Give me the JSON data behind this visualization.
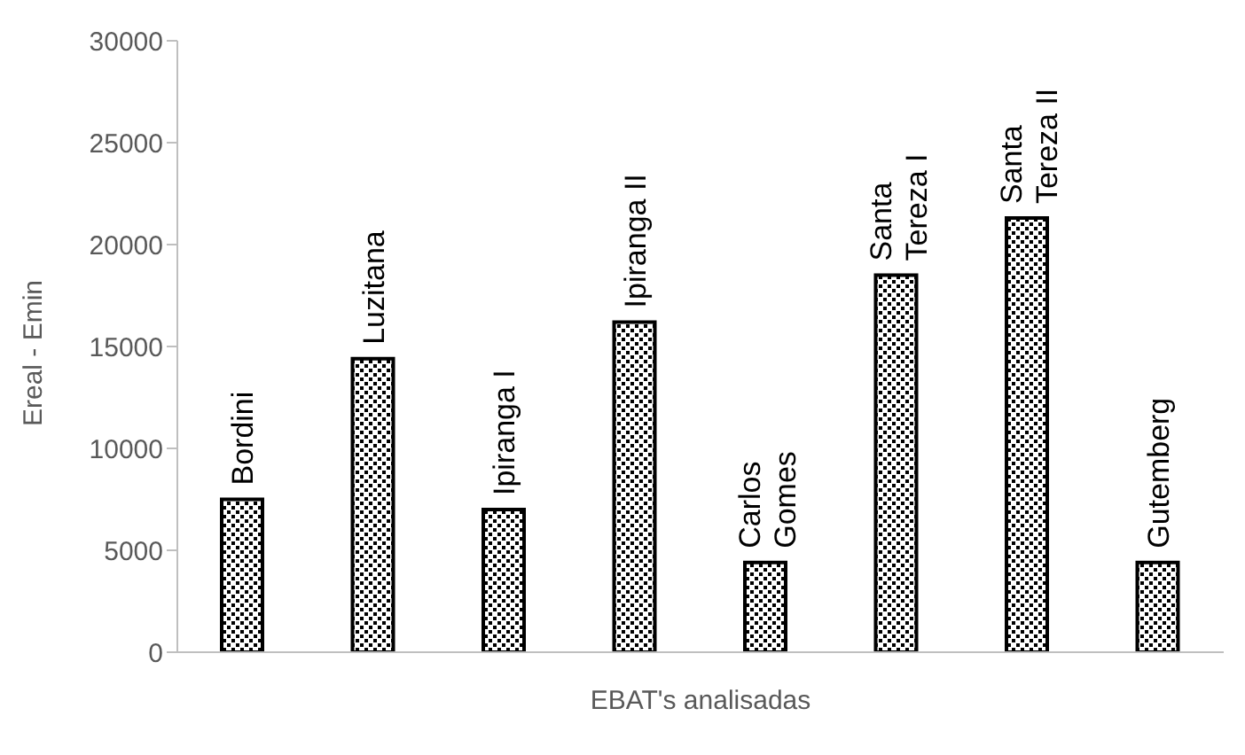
{
  "chart_data": {
    "type": "bar",
    "xlabel": "EBAT's analisadas",
    "ylabel": "Ereal - Emin",
    "categories": [
      "Bordini",
      "Luzitana",
      "Ipiranga I",
      "Ipiranga II",
      "Carlos Gomes",
      "Santa Tereza I",
      "Santa Tereza II",
      "Gutemberg"
    ],
    "values": [
      7500,
      14400,
      7000,
      16200,
      4400,
      18500,
      21300,
      4400
    ],
    "color": "#000000",
    "ylim": [
      0,
      30000
    ],
    "yticks": [
      0,
      5000,
      10000,
      15000,
      20000,
      25000,
      30000
    ],
    "grid": false,
    "legend": false,
    "tick_labels": "y"
  }
}
